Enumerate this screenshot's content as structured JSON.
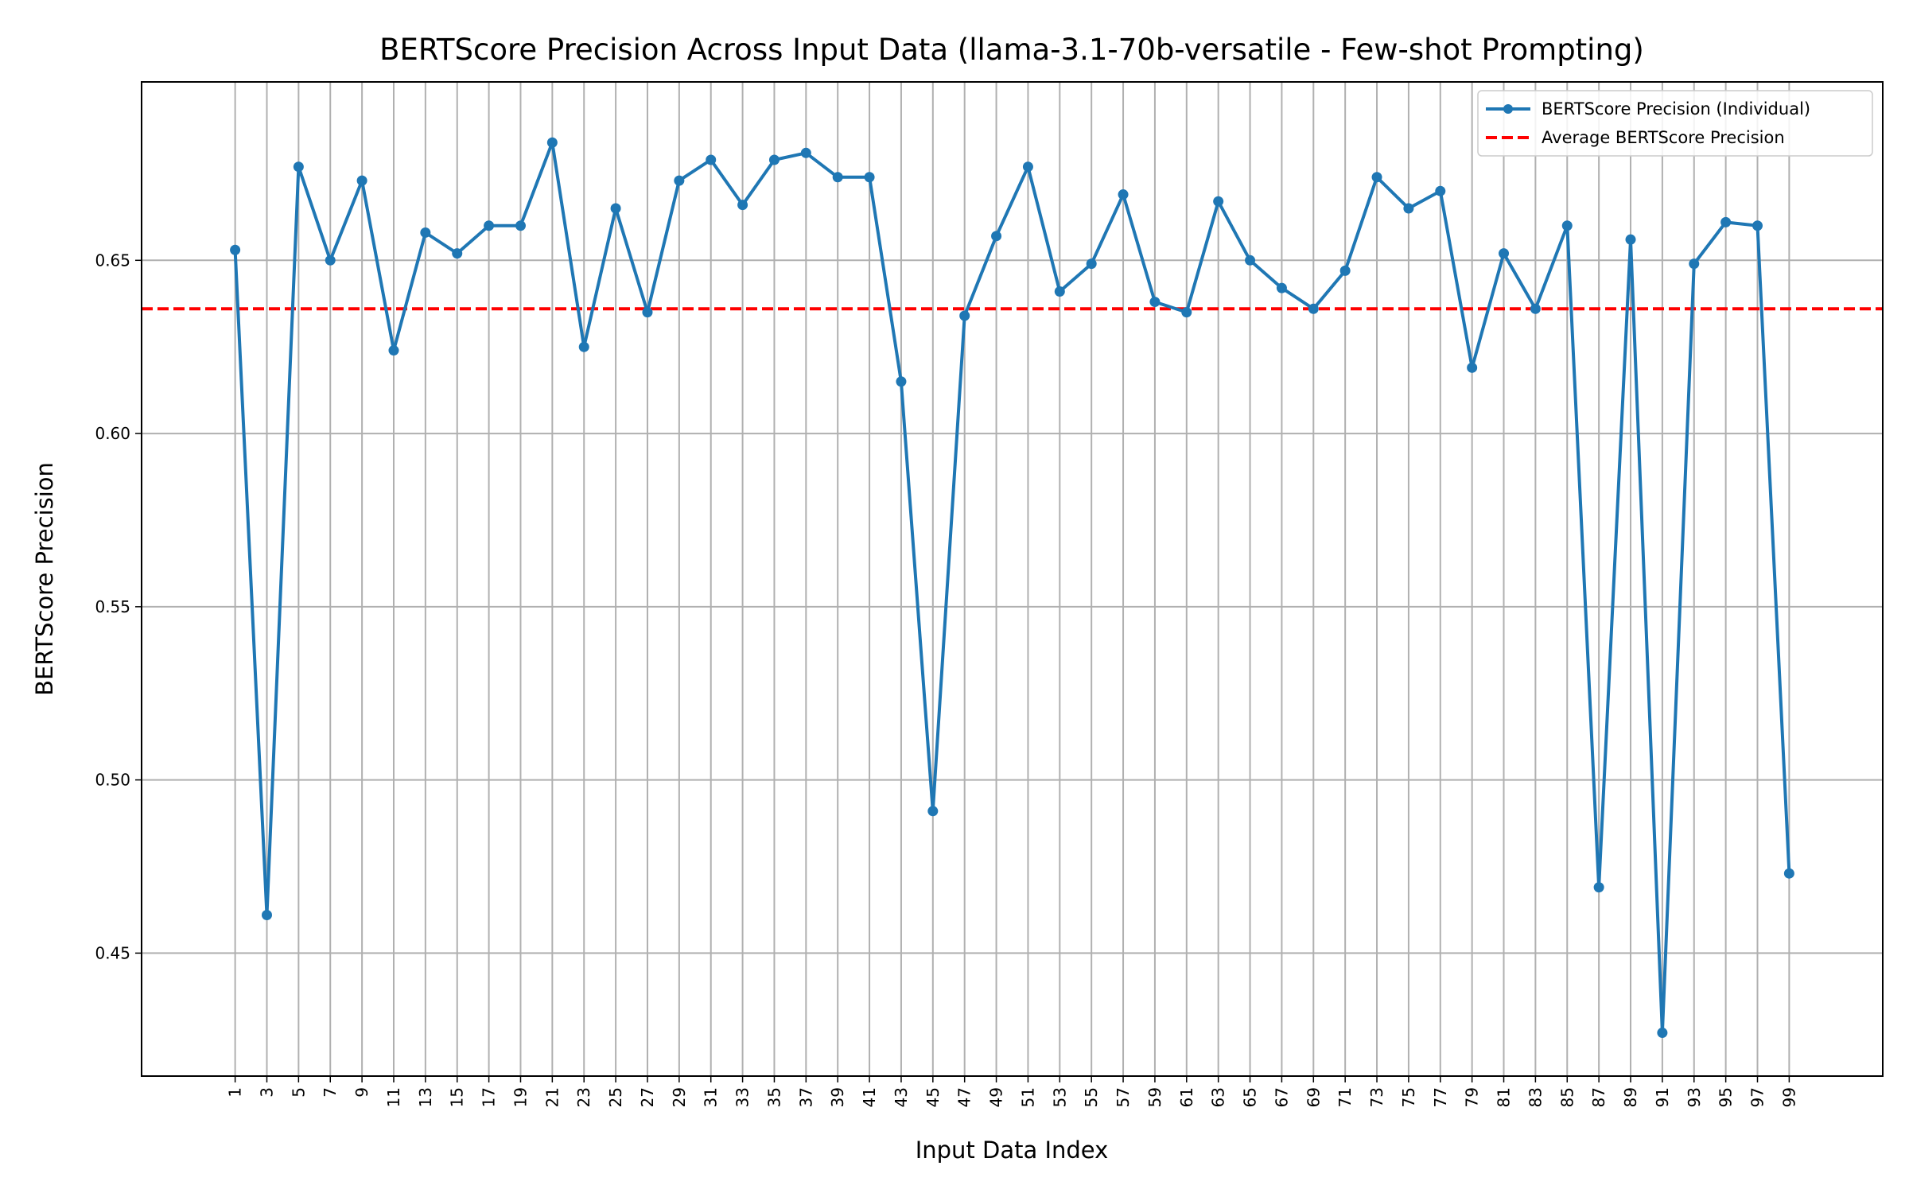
{
  "chart_data": {
    "type": "line",
    "title": "BERTScore Precision Across Input Data (llama-3.1-70b-versatile - Few-shot Prompting)",
    "xlabel": "Input Data Index",
    "ylabel": "BERTScore Precision",
    "xlim": [
      -4.9,
      104.9
    ],
    "ylim": [
      0.4145,
      0.7015
    ],
    "yticks": [
      0.45,
      0.5,
      0.55,
      0.6,
      0.65
    ],
    "ytick_labels": [
      "0.45",
      "0.50",
      "0.55",
      "0.60",
      "0.65"
    ],
    "xticks": [
      1,
      3,
      5,
      7,
      9,
      11,
      13,
      15,
      17,
      19,
      21,
      23,
      25,
      27,
      29,
      31,
      33,
      35,
      37,
      39,
      41,
      43,
      45,
      47,
      49,
      51,
      53,
      55,
      57,
      59,
      61,
      63,
      65,
      67,
      69,
      71,
      73,
      75,
      77,
      79,
      81,
      83,
      85,
      87,
      89,
      91,
      93,
      95,
      97,
      99
    ],
    "xtick_labels": [
      "1",
      "3",
      "5",
      "7",
      "9",
      "11",
      "13",
      "15",
      "17",
      "19",
      "21",
      "23",
      "25",
      "27",
      "29",
      "31",
      "33",
      "35",
      "37",
      "39",
      "41",
      "43",
      "45",
      "47",
      "49",
      "51",
      "53",
      "55",
      "57",
      "59",
      "61",
      "63",
      "65",
      "67",
      "69",
      "71",
      "73",
      "75",
      "77",
      "79",
      "81",
      "83",
      "85",
      "87",
      "89",
      "91",
      "93",
      "95",
      "97",
      "99"
    ],
    "grid": true,
    "legend_position": "top-right",
    "series": [
      {
        "name": "BERTScore Precision (Individual)",
        "color": "#1f77b4",
        "style": "solid-with-markers",
        "x": [
          1,
          3,
          5,
          7,
          9,
          11,
          13,
          15,
          17,
          19,
          21,
          23,
          25,
          27,
          29,
          31,
          33,
          35,
          37,
          39,
          41,
          43,
          45,
          47,
          49,
          51,
          53,
          55,
          57,
          59,
          61,
          63,
          65,
          67,
          69,
          71,
          73,
          75,
          77,
          79,
          81,
          83,
          85,
          87,
          89,
          91,
          93,
          95,
          97,
          99
        ],
        "y": [
          0.653,
          0.461,
          0.677,
          0.65,
          0.673,
          0.624,
          0.658,
          0.652,
          0.66,
          0.66,
          0.684,
          0.625,
          0.665,
          0.635,
          0.673,
          0.679,
          0.666,
          0.679,
          0.681,
          0.674,
          0.674,
          0.615,
          0.491,
          0.634,
          0.657,
          0.677,
          0.641,
          0.649,
          0.669,
          0.638,
          0.635,
          0.667,
          0.65,
          0.642,
          0.636,
          0.647,
          0.674,
          0.665,
          0.67,
          0.619,
          0.652,
          0.636,
          0.66,
          0.469,
          0.656,
          0.427,
          0.649,
          0.661,
          0.66,
          0.473
        ]
      },
      {
        "name": "Average BERTScore Precision",
        "color": "#ff0000",
        "style": "dashed",
        "value": 0.636
      }
    ]
  }
}
